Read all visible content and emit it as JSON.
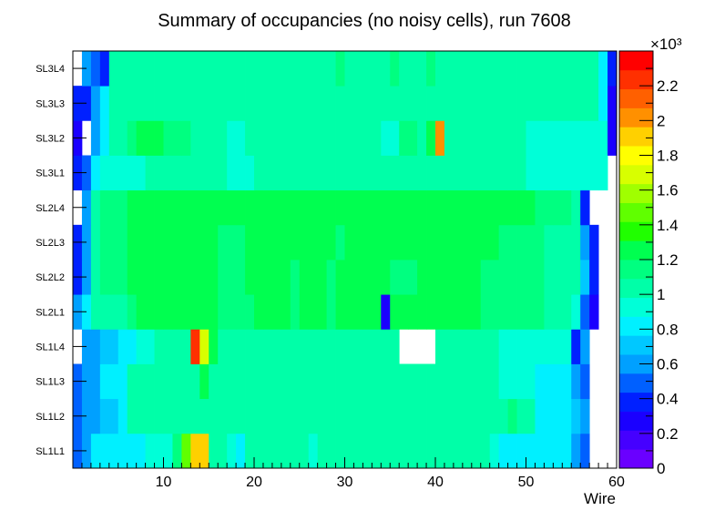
{
  "chart_data": {
    "type": "heatmap",
    "title": "Summary of occupancies (no noisy cells), run 7608",
    "xlabel": "Wire",
    "ylabel": "",
    "xlim": [
      0,
      60
    ],
    "x_ticks": [
      10,
      20,
      30,
      40,
      50,
      60
    ],
    "y_categories": [
      "SL1L1",
      "SL1L2",
      "SL1L3",
      "SL1L4",
      "SL2L1",
      "SL2L2",
      "SL2L3",
      "SL2L4",
      "SL3L1",
      "SL3L2",
      "SL3L3",
      "SL3L4"
    ],
    "z_range": [
      0,
      2400
    ],
    "z_ticks": [
      0,
      0.2,
      0.4,
      0.6,
      0.8,
      1,
      1.2,
      1.4,
      1.6,
      1.8,
      2,
      2.2
    ],
    "z_exponent": "×10³",
    "rows": {
      "SL1L1": [
        480,
        620,
        850,
        850,
        850,
        850,
        850,
        850,
        950,
        950,
        950,
        1100,
        1500,
        1950,
        1950,
        1000,
        1000,
        950,
        850,
        1000,
        1000,
        1000,
        1000,
        1000,
        1000,
        1000,
        950,
        1000,
        1000,
        1000,
        1000,
        1000,
        1000,
        1000,
        1000,
        1000,
        1000,
        1000,
        1000,
        1000,
        1000,
        1000,
        1000,
        1000,
        1000,
        1000,
        950,
        850,
        850,
        850,
        850,
        850,
        850,
        850,
        850,
        650,
        500,
        null,
        null,
        null
      ],
      "SL1L2": [
        480,
        600,
        600,
        750,
        750,
        850,
        1000,
        1000,
        1000,
        1000,
        1000,
        1000,
        1000,
        1050,
        1050,
        1000,
        1000,
        1000,
        1000,
        1000,
        1000,
        1000,
        1000,
        1000,
        1000,
        1000,
        1000,
        1000,
        1000,
        1000,
        1000,
        1000,
        1000,
        1000,
        1000,
        1000,
        1000,
        1000,
        1000,
        1000,
        1000,
        1000,
        1000,
        1000,
        1000,
        1000,
        1000,
        1000,
        1100,
        1000,
        1000,
        850,
        850,
        850,
        850,
        700,
        650,
        null,
        null,
        null
      ],
      "SL1L3": [
        480,
        620,
        620,
        850,
        850,
        850,
        1000,
        1000,
        1000,
        1000,
        1000,
        1000,
        1000,
        1050,
        1250,
        1000,
        1000,
        1000,
        1000,
        1000,
        1000,
        1000,
        1000,
        1000,
        1000,
        1000,
        1000,
        1000,
        1000,
        1000,
        1000,
        1000,
        1000,
        1000,
        1000,
        1000,
        1000,
        1000,
        1000,
        1000,
        1000,
        1000,
        1000,
        1000,
        1000,
        1000,
        1000,
        950,
        950,
        950,
        950,
        850,
        850,
        850,
        850,
        650,
        500,
        null,
        null,
        null
      ],
      "SL1L4": [
        null,
        620,
        620,
        750,
        750,
        850,
        850,
        950,
        950,
        1000,
        1000,
        1000,
        1000,
        2200,
        1650,
        1300,
        1000,
        1000,
        1000,
        1000,
        1000,
        1000,
        1000,
        1000,
        1000,
        1000,
        1000,
        1000,
        1000,
        1000,
        1000,
        1000,
        1000,
        1000,
        1000,
        1000,
        null,
        null,
        null,
        null,
        1000,
        1000,
        1000,
        1000,
        1000,
        1000,
        1000,
        950,
        950,
        950,
        950,
        900,
        900,
        900,
        900,
        350,
        600,
        null,
        null,
        null
      ],
      "SL2L1": [
        620,
        800,
        1000,
        1000,
        1000,
        1000,
        1100,
        1200,
        1200,
        1200,
        1200,
        1200,
        1200,
        1200,
        1200,
        1200,
        1100,
        1100,
        1100,
        1100,
        1200,
        1200,
        1200,
        1200,
        1100,
        1200,
        1200,
        1200,
        1100,
        1200,
        1200,
        1200,
        1200,
        1200,
        300,
        1200,
        1200,
        1200,
        1200,
        1200,
        1200,
        1200,
        1200,
        1200,
        1200,
        1100,
        1100,
        1100,
        1100,
        1100,
        1100,
        1100,
        1000,
        1000,
        1000,
        900,
        500,
        300,
        null,
        null
      ],
      "SL2L2": [
        350,
        620,
        1000,
        1100,
        1100,
        1100,
        1200,
        1200,
        1200,
        1200,
        1200,
        1200,
        1200,
        1200,
        1200,
        1200,
        1100,
        1100,
        1100,
        1200,
        1200,
        1200,
        1200,
        1200,
        1100,
        1200,
        1200,
        1200,
        1100,
        1200,
        1200,
        1200,
        1200,
        1200,
        1200,
        1100,
        1100,
        1100,
        1200,
        1200,
        1200,
        1200,
        1200,
        1200,
        1200,
        1100,
        1100,
        1100,
        1100,
        1100,
        1100,
        1100,
        1000,
        1000,
        1000,
        1000,
        700,
        350,
        null,
        null
      ],
      "SL2L3": [
        350,
        620,
        1000,
        1100,
        1100,
        1100,
        1200,
        1200,
        1200,
        1200,
        1200,
        1200,
        1200,
        1200,
        1200,
        1200,
        1100,
        1100,
        1100,
        1200,
        1200,
        1200,
        1200,
        1200,
        1200,
        1200,
        1200,
        1200,
        1200,
        1100,
        1200,
        1200,
        1200,
        1200,
        1200,
        1200,
        1200,
        1200,
        1200,
        1200,
        1200,
        1200,
        1200,
        1200,
        1200,
        1200,
        1200,
        1100,
        1100,
        1100,
        1100,
        1100,
        1000,
        1000,
        1000,
        1000,
        620,
        350,
        null,
        null
      ],
      "SL2L4": [
        null,
        620,
        1000,
        1100,
        1100,
        1100,
        1200,
        1200,
        1200,
        1200,
        1200,
        1200,
        1300,
        1200,
        1200,
        1200,
        1200,
        1200,
        1200,
        1200,
        1200,
        1200,
        1200,
        1200,
        1200,
        1200,
        1200,
        1300,
        1300,
        1200,
        1200,
        1200,
        1200,
        1200,
        1200,
        1200,
        1200,
        1200,
        1200,
        1200,
        1200,
        1200,
        1200,
        1200,
        1200,
        1200,
        1200,
        1200,
        1200,
        1200,
        1200,
        1100,
        1100,
        1100,
        1100,
        1000,
        350,
        null,
        null,
        null
      ],
      "SL3L1": [
        350,
        500,
        850,
        900,
        900,
        950,
        950,
        950,
        1000,
        1000,
        1000,
        1000,
        1000,
        1000,
        1000,
        1000,
        1000,
        950,
        950,
        950,
        1000,
        1000,
        1000,
        1000,
        1000,
        1000,
        1000,
        1000,
        1000,
        1000,
        1000,
        1000,
        1000,
        1000,
        1000,
        1000,
        1000,
        1000,
        1000,
        1000,
        1000,
        1000,
        1000,
        1000,
        1000,
        1000,
        1000,
        1000,
        1000,
        1000,
        950,
        950,
        950,
        950,
        950,
        950,
        950,
        950,
        950,
        null
      ],
      "SL3L2": [
        250,
        null,
        650,
        850,
        1000,
        1000,
        1100,
        1200,
        1200,
        1250,
        1100,
        1100,
        1100,
        1000,
        1000,
        1000,
        1000,
        950,
        950,
        1000,
        1000,
        1000,
        1000,
        1000,
        1000,
        1000,
        1000,
        1000,
        1000,
        1000,
        1000,
        1000,
        1000,
        1000,
        950,
        950,
        1100,
        1100,
        1000,
        1200,
        2000,
        1000,
        1000,
        1000,
        1000,
        1000,
        1000,
        1000,
        1000,
        1000,
        950,
        950,
        950,
        950,
        950,
        950,
        950,
        950,
        950,
        300
      ],
      "SL3L3": [
        350,
        350,
        600,
        850,
        1000,
        1000,
        1000,
        1000,
        1000,
        1000,
        1000,
        1000,
        1000,
        1000,
        1000,
        1000,
        1000,
        1000,
        1000,
        1000,
        1000,
        1000,
        1000,
        1000,
        1000,
        1000,
        1000,
        1000,
        1000,
        1000,
        1000,
        1000,
        1000,
        1000,
        1000,
        1000,
        1000,
        1000,
        1000,
        1000,
        1000,
        1000,
        1000,
        1000,
        1000,
        1000,
        1000,
        1000,
        1000,
        1000,
        1000,
        1000,
        1000,
        1000,
        1000,
        1000,
        1000,
        1000,
        800,
        300
      ],
      "SL3L4": [
        null,
        620,
        450,
        350,
        1000,
        1000,
        1000,
        1000,
        1000,
        1000,
        1000,
        1000,
        1000,
        1000,
        1000,
        1000,
        1000,
        1000,
        1000,
        1000,
        1000,
        1000,
        1000,
        1000,
        1000,
        1000,
        1000,
        1000,
        1000,
        1100,
        1000,
        1000,
        1000,
        1000,
        1000,
        1100,
        1000,
        1000,
        1000,
        1100,
        1000,
        1000,
        1000,
        1000,
        1000,
        1000,
        1000,
        1000,
        1000,
        1000,
        1000,
        1000,
        1000,
        1000,
        1000,
        1000,
        1000,
        1000,
        850,
        350
      ]
    },
    "grid": false,
    "legend": "right color palette"
  }
}
